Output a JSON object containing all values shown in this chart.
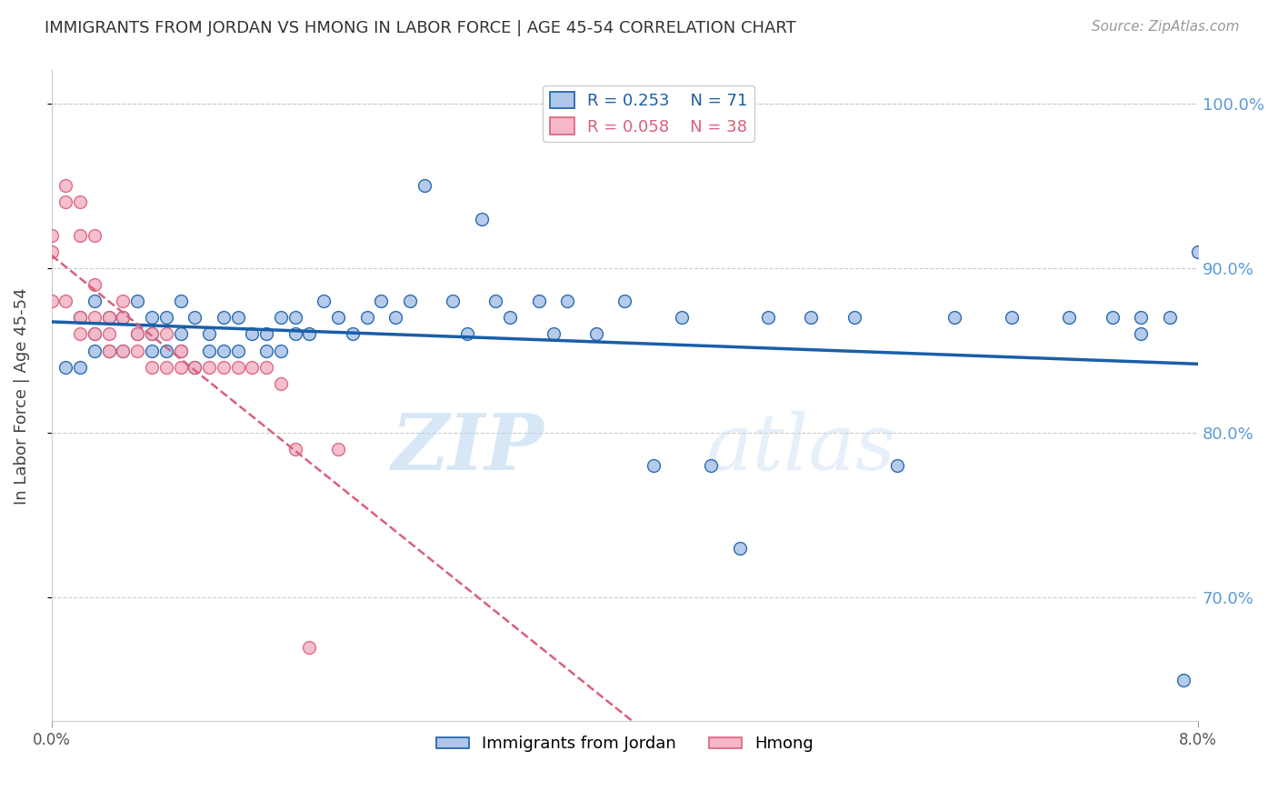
{
  "title": "IMMIGRANTS FROM JORDAN VS HMONG IN LABOR FORCE | AGE 45-54 CORRELATION CHART",
  "source": "Source: ZipAtlas.com",
  "ylabel": "In Labor Force | Age 45-54",
  "x_min": 0.0,
  "x_max": 0.08,
  "y_min": 0.625,
  "y_max": 1.02,
  "jordan_r": "0.253",
  "jordan_n": "71",
  "hmong_r": "0.058",
  "hmong_n": "38",
  "jordan_color": "#aec6e8",
  "jordan_line_color": "#1a5fa8",
  "hmong_color": "#f4b8c8",
  "hmong_line_color": "#d9607a",
  "jordan_x": [
    0.001,
    0.002,
    0.002,
    0.003,
    0.003,
    0.003,
    0.004,
    0.004,
    0.005,
    0.005,
    0.006,
    0.006,
    0.007,
    0.007,
    0.007,
    0.008,
    0.008,
    0.009,
    0.009,
    0.009,
    0.01,
    0.01,
    0.011,
    0.011,
    0.012,
    0.012,
    0.013,
    0.013,
    0.014,
    0.015,
    0.015,
    0.016,
    0.016,
    0.017,
    0.017,
    0.018,
    0.019,
    0.02,
    0.021,
    0.022,
    0.023,
    0.024,
    0.025,
    0.026,
    0.028,
    0.029,
    0.03,
    0.031,
    0.032,
    0.034,
    0.035,
    0.036,
    0.038,
    0.04,
    0.042,
    0.044,
    0.046,
    0.048,
    0.05,
    0.053,
    0.056,
    0.059,
    0.063,
    0.067,
    0.071,
    0.074,
    0.076,
    0.078,
    0.079,
    0.08,
    0.076
  ],
  "jordan_y": [
    0.84,
    0.87,
    0.84,
    0.88,
    0.86,
    0.85,
    0.87,
    0.85,
    0.87,
    0.85,
    0.88,
    0.86,
    0.87,
    0.86,
    0.85,
    0.87,
    0.85,
    0.88,
    0.86,
    0.85,
    0.87,
    0.84,
    0.86,
    0.85,
    0.87,
    0.85,
    0.87,
    0.85,
    0.86,
    0.86,
    0.85,
    0.87,
    0.85,
    0.87,
    0.86,
    0.86,
    0.88,
    0.87,
    0.86,
    0.87,
    0.88,
    0.87,
    0.88,
    0.95,
    0.88,
    0.86,
    0.93,
    0.88,
    0.87,
    0.88,
    0.86,
    0.88,
    0.86,
    0.88,
    0.78,
    0.87,
    0.78,
    0.73,
    0.87,
    0.87,
    0.87,
    0.78,
    0.87,
    0.87,
    0.87,
    0.87,
    0.87,
    0.87,
    0.65,
    0.91,
    0.86
  ],
  "hmong_x": [
    0.0,
    0.0,
    0.0,
    0.001,
    0.001,
    0.001,
    0.002,
    0.002,
    0.002,
    0.002,
    0.003,
    0.003,
    0.003,
    0.003,
    0.004,
    0.004,
    0.004,
    0.005,
    0.005,
    0.005,
    0.006,
    0.006,
    0.007,
    0.007,
    0.008,
    0.008,
    0.009,
    0.009,
    0.01,
    0.011,
    0.012,
    0.013,
    0.014,
    0.015,
    0.016,
    0.017,
    0.018,
    0.02
  ],
  "hmong_y": [
    0.92,
    0.91,
    0.88,
    0.95,
    0.94,
    0.88,
    0.94,
    0.92,
    0.87,
    0.86,
    0.92,
    0.89,
    0.87,
    0.86,
    0.87,
    0.86,
    0.85,
    0.88,
    0.87,
    0.85,
    0.86,
    0.85,
    0.86,
    0.84,
    0.86,
    0.84,
    0.85,
    0.84,
    0.84,
    0.84,
    0.84,
    0.84,
    0.84,
    0.84,
    0.83,
    0.79,
    0.67,
    0.79
  ],
  "legend_jordan_label": "Immigrants from Jordan",
  "legend_hmong_label": "Hmong",
  "watermark_zip": "ZIP",
  "watermark_atlas": "atlas",
  "background_color": "#ffffff",
  "grid_color": "#cccccc",
  "right_axis_color": "#5b9bd5"
}
